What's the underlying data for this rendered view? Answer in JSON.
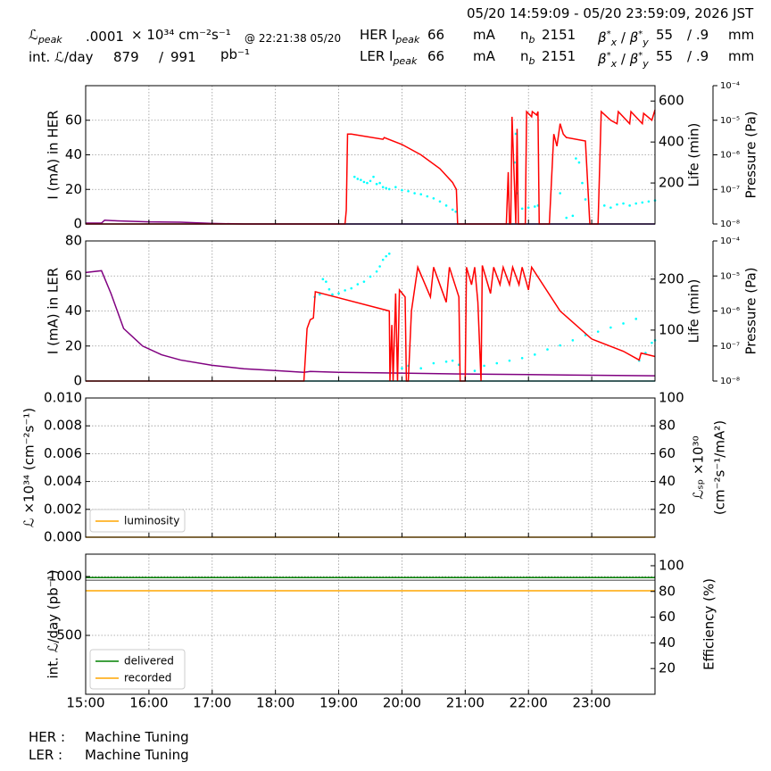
{
  "header": {
    "time_range": "05/20 14:59:09 - 05/20 23:59:09, 2026 JST",
    "row1": {
      "label": "ℒ",
      "label_sub": "peak",
      "value": ".0001",
      "unit": "× 10³⁴ cm⁻²s⁻¹",
      "time": "@ 22:21:38 05/20"
    },
    "row2": {
      "label": "int. ℒ/day",
      "value1": "879",
      "sep": "/",
      "value2": "991",
      "unit": "pb⁻¹"
    },
    "rings": [
      {
        "label": "HER I",
        "label_sub": "peak",
        "current": "66",
        "current_unit": "mA",
        "nb": "n",
        "nb_sub": "b",
        "nb_value": "2151",
        "beta": "β",
        "beta_sup": "*",
        "beta_x": "x",
        "beta_sep": "/",
        "beta_y": "y",
        "beta_value": "55",
        "beta_value2": "/ .9",
        "beta_unit": "mm"
      },
      {
        "label": "LER I",
        "label_sub": "peak",
        "current": "66",
        "current_unit": "mA",
        "nb": "n",
        "nb_sub": "b",
        "nb_value": "2151",
        "beta": "β",
        "beta_sup": "*",
        "beta_x": "x",
        "beta_sep": "/",
        "beta_y": "y",
        "beta_value": "55",
        "beta_value2": "/ .9",
        "beta_unit": "mm"
      }
    ]
  },
  "footer": {
    "status": [
      {
        "ring": "HER :",
        "state": "Machine Tuning"
      },
      {
        "ring": "LER :",
        "state": "Machine Tuning"
      }
    ]
  },
  "chart_data": [
    {
      "type": "line",
      "ylabel": "I (mA) in HER",
      "ylim": [
        0,
        80
      ],
      "yticks": [
        0,
        20,
        40,
        60
      ],
      "y2label": "Life (min)",
      "y2lim": [
        0,
        675
      ],
      "y2ticks": [
        200,
        400,
        600
      ],
      "y3label": "Pressure (Pa)",
      "y3lim": [
        1e-08,
        0.0001
      ],
      "y3log": true,
      "y3ticks": [
        {
          "value": 1e-08,
          "label": "10⁻⁸"
        },
        {
          "value": 1e-07,
          "label": "10⁻⁷"
        },
        {
          "value": 1e-06,
          "label": "10⁻⁶"
        },
        {
          "value": 1e-05,
          "label": "10⁻⁵"
        },
        {
          "value": 0.0001,
          "label": "10⁻⁴"
        }
      ],
      "grid": true,
      "series": [
        {
          "color": "#008080",
          "style": "line",
          "x": [
            15,
            24
          ],
          "values": [
            0,
            0
          ]
        },
        {
          "color": "#800080",
          "style": "line",
          "x": [
            15,
            15.25,
            15.3,
            15.5,
            16,
            16.5,
            17,
            17.5,
            24
          ],
          "values": [
            0.5,
            0.5,
            2.2,
            1.8,
            1.2,
            1,
            0.3,
            0,
            0
          ]
        },
        {
          "color": "#00ffff",
          "style": "markers",
          "axis": "y2",
          "x": [
            19.25,
            19.3,
            19.35,
            19.4,
            19.45,
            19.5,
            19.55,
            19.6,
            19.65,
            19.7,
            19.75,
            19.8,
            19.9,
            20.0,
            20.1,
            20.2,
            20.3,
            20.4,
            20.5,
            20.6,
            20.7,
            20.8,
            20.85,
            21.78,
            21.8,
            21.82,
            21.9,
            22.0,
            22.1,
            22.15,
            22.5,
            22.6,
            22.7,
            22.75,
            22.8,
            22.85,
            22.9,
            23.2,
            23.3,
            23.4,
            23.5,
            23.6,
            23.7,
            23.8,
            23.9,
            24.0
          ],
          "values": [
            230,
            220,
            215,
            205,
            200,
            210,
            230,
            195,
            200,
            180,
            175,
            170,
            180,
            165,
            160,
            150,
            145,
            135,
            125,
            110,
            90,
            70,
            60,
            300,
            440,
            150,
            75,
            80,
            85,
            90,
            150,
            30,
            40,
            320,
            300,
            200,
            120,
            90,
            80,
            95,
            100,
            90,
            100,
            105,
            110,
            115
          ]
        },
        {
          "color": "#ff0000",
          "style": "line",
          "x": [
            15,
            19.1,
            19.12,
            19.14,
            19.2,
            19.7,
            19.72,
            20.0,
            20.3,
            20.6,
            20.8,
            20.86,
            20.88,
            21.65,
            21.68,
            21.7,
            21.72,
            21.74,
            21.8,
            21.82,
            21.84,
            21.95,
            21.97,
            22.05,
            22.06,
            22.13,
            22.15,
            22.17,
            22.33,
            22.4,
            22.45,
            22.5,
            22.55,
            22.6,
            22.9,
            22.97,
            23.1,
            23.15,
            23.3,
            23.4,
            23.42,
            23.6,
            23.62,
            23.8,
            23.82,
            23.95,
            24
          ],
          "values": [
            0,
            0,
            8,
            52,
            52,
            49,
            50,
            46,
            40,
            32,
            24,
            20,
            0,
            0,
            30,
            0,
            0,
            62,
            0,
            55,
            0,
            0,
            65,
            62,
            65,
            63,
            65,
            0,
            0,
            52,
            45,
            58,
            52,
            50,
            48,
            0,
            0,
            65,
            60,
            58,
            65,
            58,
            65,
            58,
            64,
            60,
            66
          ]
        }
      ]
    },
    {
      "type": "line",
      "ylabel": "I (mA) in LER",
      "ylim": [
        0,
        80
      ],
      "yticks": [
        0,
        20,
        40,
        60,
        80
      ],
      "y2label": "Life (min)",
      "y2lim": [
        0,
        275
      ],
      "y2ticks": [
        100,
        200
      ],
      "y3label": "Pressure (Pa)",
      "y3lim": [
        1e-08,
        0.0001
      ],
      "y3log": true,
      "y3ticks": [
        {
          "value": 1e-08,
          "label": "10⁻⁸"
        },
        {
          "value": 1e-07,
          "label": "10⁻⁷"
        },
        {
          "value": 1e-06,
          "label": "10⁻⁶"
        },
        {
          "value": 1e-05,
          "label": "10⁻⁵"
        },
        {
          "value": 0.0001,
          "label": "10⁻⁴"
        }
      ],
      "grid": true,
      "series": [
        {
          "color": "#008080",
          "style": "line",
          "x": [
            15,
            24
          ],
          "values": [
            0,
            0
          ]
        },
        {
          "color": "#800080",
          "style": "line",
          "x": [
            15,
            15.25,
            15.4,
            15.6,
            15.9,
            16.2,
            16.5,
            17,
            17.5,
            18,
            18.45,
            18.55,
            19,
            20,
            21,
            22,
            23,
            24
          ],
          "values": [
            62,
            63,
            50,
            30,
            20,
            15,
            12,
            9,
            7,
            6,
            5,
            5.5,
            5,
            4.5,
            4,
            3.7,
            3.3,
            3
          ]
        },
        {
          "color": "#00ffff",
          "style": "markers",
          "axis": "y2",
          "x": [
            18.62,
            18.7,
            18.75,
            18.8,
            18.85,
            18.9,
            19.0,
            19.1,
            19.2,
            19.3,
            19.4,
            19.5,
            19.6,
            19.65,
            19.7,
            19.75,
            19.8,
            20.0,
            20.1,
            20.3,
            20.5,
            20.7,
            20.8,
            20.9,
            21.15,
            21.3,
            21.5,
            21.7,
            21.9,
            22.1,
            22.3,
            22.5,
            22.7,
            22.9,
            23.1,
            23.3,
            23.5,
            23.7,
            23.75,
            23.85,
            23.95,
            24
          ],
          "values": [
            165,
            170,
            200,
            195,
            180,
            170,
            172,
            178,
            182,
            190,
            195,
            205,
            215,
            225,
            238,
            245,
            250,
            25,
            30,
            25,
            35,
            38,
            40,
            32,
            20,
            30,
            35,
            40,
            45,
            52,
            62,
            70,
            80,
            90,
            97,
            105,
            113,
            122,
            40,
            55,
            75,
            80
          ]
        },
        {
          "color": "#ff0000",
          "style": "line",
          "x": [
            15,
            18.45,
            18.5,
            18.55,
            18.6,
            18.63,
            19.8,
            19.81,
            19.84,
            19.86,
            19.9,
            19.93,
            19.96,
            20.05,
            20.07,
            20.1,
            20.15,
            20.25,
            20.45,
            20.5,
            20.7,
            20.75,
            20.9,
            20.92,
            21.0,
            21.02,
            21.1,
            21.15,
            21.2,
            21.25,
            21.27,
            21.4,
            21.45,
            21.55,
            21.6,
            21.7,
            21.75,
            21.85,
            21.9,
            22.0,
            22.05,
            22.5,
            23.0,
            23.5,
            23.75,
            23.78,
            24
          ],
          "values": [
            0,
            0,
            30,
            35,
            36,
            51,
            40,
            0,
            32,
            0,
            50,
            0,
            52,
            48,
            0,
            0,
            40,
            65,
            48,
            65,
            45,
            65,
            48,
            0,
            0,
            65,
            55,
            65,
            45,
            0,
            66,
            50,
            65,
            55,
            65,
            55,
            65,
            55,
            65,
            52,
            65,
            40,
            24,
            17,
            12,
            16,
            14
          ]
        }
      ]
    },
    {
      "type": "line",
      "ylabel": "ℒ ×10³⁴ (cm⁻²s⁻¹)",
      "ylim": [
        0,
        0.01
      ],
      "yticks": [
        {
          "value": 0,
          "label": "0.000"
        },
        {
          "value": 0.002,
          "label": "0.002"
        },
        {
          "value": 0.004,
          "label": "0.004"
        },
        {
          "value": 0.006,
          "label": "0.006"
        },
        {
          "value": 0.008,
          "label": "0.008"
        },
        {
          "value": 0.01,
          "label": "0.010"
        }
      ],
      "y2label": [
        "ℒₛₚ ×10³⁰",
        "(cm⁻²s⁻¹/mA²)"
      ],
      "y2lim": [
        0,
        100
      ],
      "y2ticks": [
        20,
        40,
        60,
        80,
        100
      ],
      "grid": true,
      "legend": "lower left",
      "series": [
        {
          "name": "luminosity",
          "color": "#ffa500",
          "style": "line",
          "x": [
            15,
            24
          ],
          "values": [
            0,
            0
          ]
        }
      ]
    },
    {
      "type": "line",
      "ylabel": "int. ℒ/day (pb⁻¹)",
      "ylim": [
        0,
        1190
      ],
      "yticks": [
        500,
        1000
      ],
      "y2label": "Efficiency (%)",
      "y2lim": [
        0,
        109
      ],
      "y2ticks": [
        20,
        40,
        60,
        80,
        100
      ],
      "xlim": [
        15,
        24
      ],
      "xticks": [
        {
          "value": 15,
          "label": "15:00"
        },
        {
          "value": 16,
          "label": "16:00"
        },
        {
          "value": 17,
          "label": "17:00"
        },
        {
          "value": 18,
          "label": "18:00"
        },
        {
          "value": 19,
          "label": "19:00"
        },
        {
          "value": 20,
          "label": "20:00"
        },
        {
          "value": 21,
          "label": "21:00"
        },
        {
          "value": 22,
          "label": "22:00"
        },
        {
          "value": 23,
          "label": "23:00"
        }
      ],
      "grid": true,
      "legend": "lower left",
      "series": [
        {
          "color": "#808080",
          "style": "line",
          "axis": "y2",
          "x": [
            15,
            24
          ],
          "values": [
            88.7,
            88.7
          ]
        },
        {
          "name": "delivered",
          "color": "#008000",
          "style": "line",
          "x": [
            15,
            24
          ],
          "values": [
            991,
            991
          ]
        },
        {
          "name": "recorded",
          "color": "#ffa500",
          "style": "line",
          "x": [
            15,
            24
          ],
          "values": [
            879,
            879
          ]
        }
      ]
    }
  ]
}
